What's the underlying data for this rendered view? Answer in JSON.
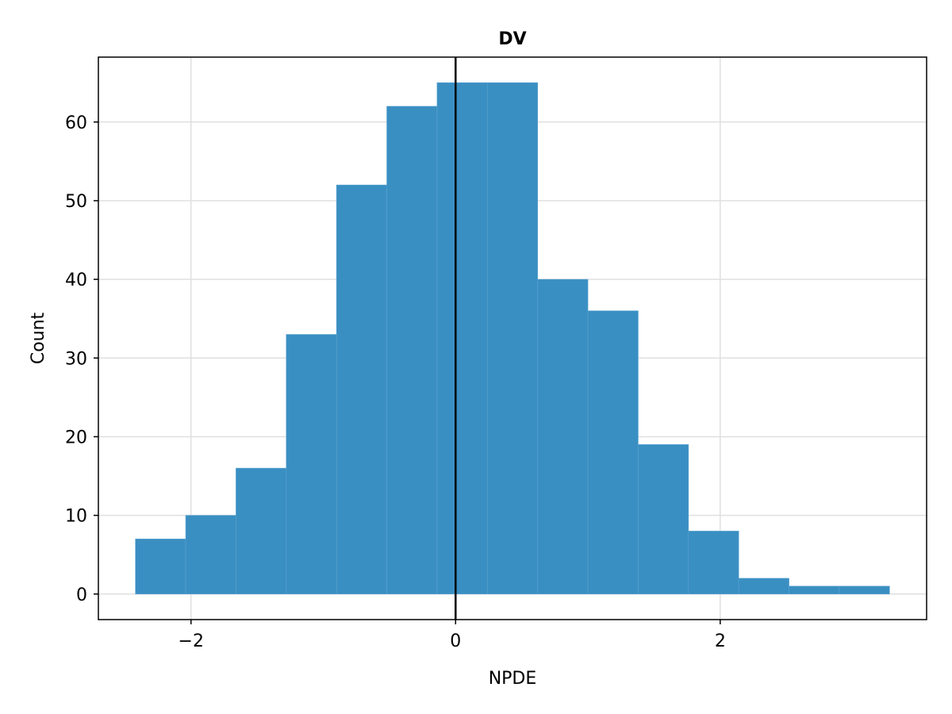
{
  "chart_data": {
    "type": "bar",
    "title": "DV",
    "xlabel": "NPDE",
    "ylabel": "Count",
    "bin_edges": [
      -2.42,
      -2.04,
      -1.66,
      -1.28,
      -0.9,
      -0.52,
      -0.14,
      0.24,
      0.62,
      1.0,
      1.38,
      1.76,
      2.14,
      2.52,
      2.9,
      3.28
    ],
    "values": [
      7,
      10,
      16,
      33,
      52,
      62,
      65,
      65,
      40,
      36,
      19,
      8,
      2,
      1,
      1
    ],
    "xlim": [
      -2.7,
      3.56
    ],
    "ylim": [
      -3.25,
      68.25
    ],
    "xticks": [
      -2,
      0,
      2
    ],
    "xtick_labels": [
      "−2",
      "0",
      "2"
    ],
    "yticks": [
      0,
      10,
      20,
      30,
      40,
      50,
      60
    ],
    "ytick_labels": [
      "0",
      "10",
      "20",
      "30",
      "40",
      "50",
      "60"
    ],
    "vline": 0,
    "grid": true,
    "colors": {
      "bar": "#3a8fc2",
      "bar_edge": "#5aa3d0",
      "vline": "#000000",
      "grid": "#e0e0e0",
      "frame": "#000000"
    }
  }
}
